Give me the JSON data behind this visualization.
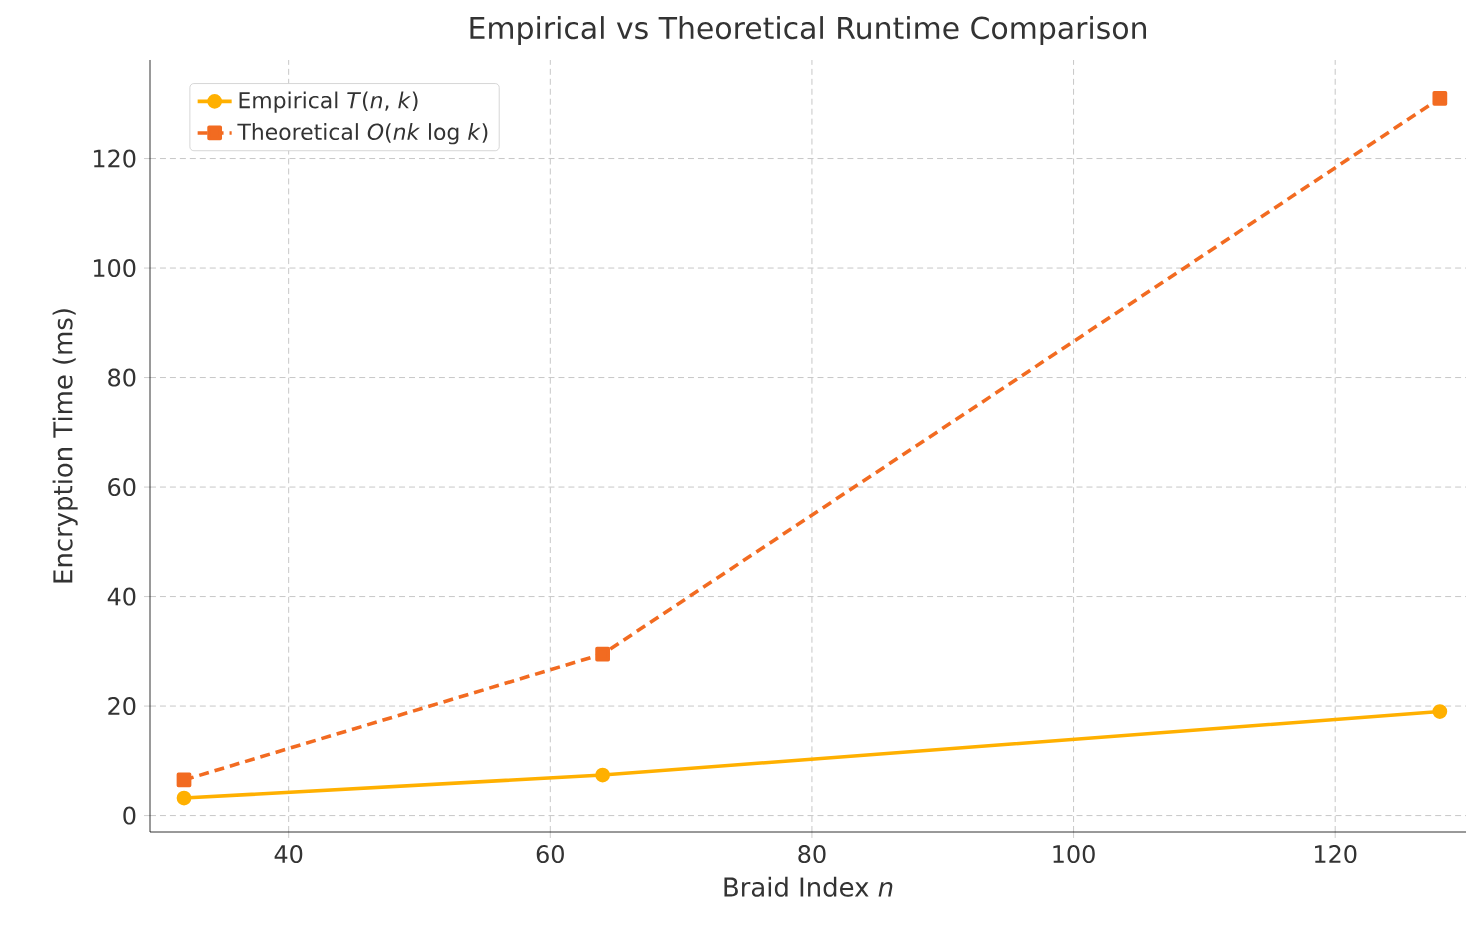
{
  "chart_data": {
    "type": "line",
    "title": "Empirical vs Theoretical Runtime Comparison",
    "xlabel": "Braid Index *n*",
    "ylabel": "Encryption Time (ms)",
    "x": [
      32,
      64,
      128
    ],
    "series": [
      {
        "name": "Empirical *T*(*n*, *k*)",
        "color": "#ffb000",
        "values": [
          3.2,
          7.4,
          19
        ],
        "marker": "circle",
        "line_style": "solid"
      },
      {
        "name": "Theoretical *O*(*nk* log *k*)",
        "color": "#f26b21",
        "values": [
          6.5,
          29.5,
          131
        ],
        "marker": "square",
        "line_style": "dashed"
      }
    ],
    "xlim": [
      29.4,
      130
    ],
    "ylim": [
      -3,
      138
    ],
    "xticks": [
      40,
      60,
      80,
      100,
      120
    ],
    "yticks": [
      0,
      20,
      40,
      60,
      80,
      100,
      120
    ],
    "grid": true,
    "legend": "top left"
  }
}
